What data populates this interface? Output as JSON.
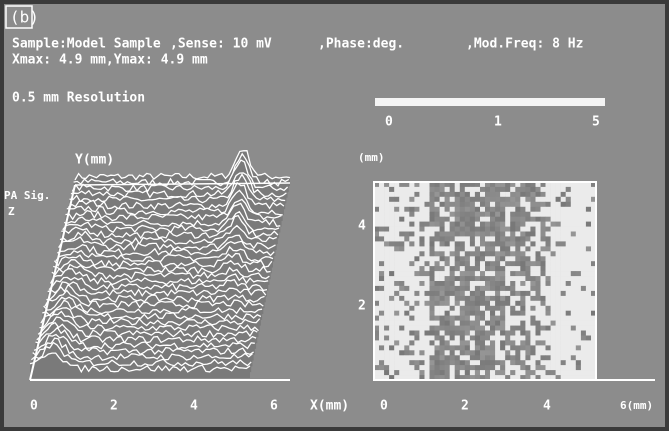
{
  "panel_label": "(b)",
  "header": {
    "sample": "Sample:Model Sample",
    "sense": ",Sense: 10 mV",
    "phase": ",Phase:deg.",
    "mod_freq": ",Mod.Freq: 8 Hz",
    "range": "Xmax: 4.9 mm,Ymax: 4.9 mm",
    "resolution": "0.5 mm Resolution"
  },
  "scale_bar": {
    "labels": [
      "0",
      "1",
      "5"
    ]
  },
  "left_plot": {
    "y_label": "Y(mm)",
    "z_label": "PA Sig.",
    "z_axis": "Z",
    "x_ticks": [
      "0",
      "2",
      "4",
      "6"
    ],
    "x_label": "X(mm)"
  },
  "right_plot": {
    "y_unit": "(mm)",
    "y_ticks": [
      "4",
      "2"
    ],
    "x_ticks": [
      "0",
      "2",
      "4"
    ],
    "x_label": "6(mm)"
  }
}
